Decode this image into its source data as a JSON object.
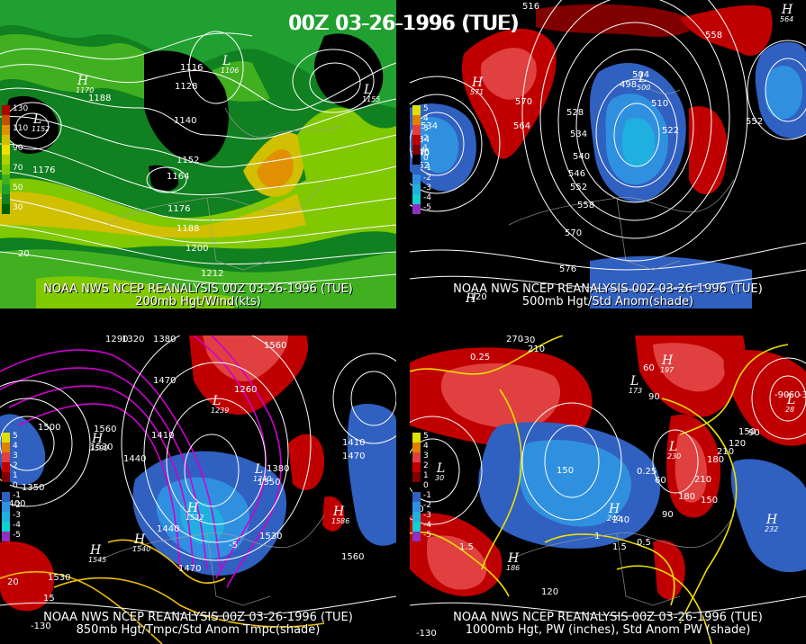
{
  "main_title": "00Z 03-26-1996 (TUE)",
  "panels": [
    {
      "id": "p200",
      "line1": "NOAA NWS NCEP REANALYSIS 00Z 03-26-1996 (TUE)",
      "line2": "200mb Hgt/Wind(kts)",
      "legend": [
        {
          "label": "130",
          "color": "#b00000"
        },
        {
          "label": "",
          "color": "#c05000"
        },
        {
          "label": "110",
          "color": "#e09000"
        },
        {
          "label": "",
          "color": "#d0c000"
        },
        {
          "label": "90",
          "color": "#f0e000"
        },
        {
          "label": "",
          "color": "#b0d000"
        },
        {
          "label": "70",
          "color": "#80c800"
        },
        {
          "label": "",
          "color": "#40b020"
        },
        {
          "label": "50",
          "color": "#20a030"
        },
        {
          "label": "",
          "color": "#108020"
        },
        {
          "label": "30",
          "color": "#006000"
        }
      ],
      "labels": [
        "1116",
        "1128",
        "1140",
        "1152",
        "1164",
        "1176",
        "1188",
        "1200",
        "1212",
        "1176",
        "1188",
        "20"
      ],
      "centers": [
        {
          "t": "L",
          "v": "1106"
        },
        {
          "t": "H",
          "v": "1170"
        },
        {
          "t": "L",
          "v": "1152"
        },
        {
          "t": "L",
          "v": "1155"
        }
      ]
    },
    {
      "id": "p500",
      "line1": "NOAA NWS NCEP REANALYSIS 00Z 03-26-1996 (TUE)",
      "line2": "500mb Hgt/Std Anom(shade)",
      "legend": [
        {
          "label": "5",
          "color": "#e0e000"
        },
        {
          "label": "4",
          "color": "#e08000"
        },
        {
          "label": "3",
          "color": "#e04040"
        },
        {
          "label": "2",
          "color": "#c00000"
        },
        {
          "label": "1",
          "color": "#800000"
        },
        {
          "label": "0",
          "color": "#000000"
        },
        {
          "label": "-1",
          "color": "#3060c0"
        },
        {
          "label": "-2",
          "color": "#3090e0"
        },
        {
          "label": "-3",
          "color": "#20b0e0"
        },
        {
          "label": "-4",
          "color": "#10d0d0"
        },
        {
          "label": "-5",
          "color": "#9030c0"
        }
      ],
      "labels": [
        "516",
        "558",
        "564",
        "570",
        "528",
        "534",
        "540",
        "546",
        "552",
        "558",
        "570",
        "576",
        "534",
        "540",
        "552",
        "546",
        "552",
        "534",
        "522",
        "510",
        "504",
        "498",
        "-120"
      ],
      "centers": [
        {
          "t": "H",
          "v": "571"
        },
        {
          "t": "L",
          "v": "534"
        },
        {
          "t": "L",
          "v": "500"
        },
        {
          "t": "H",
          "v": "564"
        },
        {
          "t": "H",
          "v": ""
        }
      ]
    },
    {
      "id": "p850",
      "line1": "NOAA NWS NCEP REANALYSIS 00Z 03-26-1996 (TUE)",
      "line2": "850mb Hgt/Tmpc/Std Anom Tmpc(shade)",
      "legend": [
        {
          "label": "5",
          "color": "#e0e000"
        },
        {
          "label": "4",
          "color": "#e08000"
        },
        {
          "label": "3",
          "color": "#e04040"
        },
        {
          "label": "2",
          "color": "#c00000"
        },
        {
          "label": "1",
          "color": "#800000"
        },
        {
          "label": "0",
          "color": "#000000"
        },
        {
          "label": "-1",
          "color": "#3060c0"
        },
        {
          "label": "-2",
          "color": "#3090e0"
        },
        {
          "label": "-3",
          "color": "#20b0e0"
        },
        {
          "label": "-4",
          "color": "#10d0d0"
        },
        {
          "label": "-5",
          "color": "#9030c0"
        }
      ],
      "labels": [
        "1290",
        "1320",
        "1380",
        "1470",
        "1560",
        "1260",
        "1500",
        "1560",
        "1530",
        "1410",
        "1440",
        "1350",
        "1400",
        "1380",
        "1350",
        "1410",
        "1470",
        "1530",
        "1560",
        "1440",
        "1470",
        "1530",
        "15",
        "20",
        "-130",
        "-5"
      ],
      "centers": [
        {
          "t": "L",
          "v": "1239"
        },
        {
          "t": "H",
          "v": "1590"
        },
        {
          "t": "L",
          "v": "1240"
        },
        {
          "t": "H",
          "v": "1532"
        },
        {
          "t": "H",
          "v": "1545"
        },
        {
          "t": "H",
          "v": "1586"
        },
        {
          "t": "H",
          "v": "1540"
        }
      ]
    },
    {
      "id": "p1000",
      "line1": "NOAA NWS NCEP REANALYSIS 00Z 03-26-1996 (TUE)",
      "line2": "1000mb Hgt, PW (inches), Std Anom PW (shade)",
      "legend": [
        {
          "label": "5",
          "color": "#e0e000"
        },
        {
          "label": "4",
          "color": "#e08000"
        },
        {
          "label": "3",
          "color": "#e04040"
        },
        {
          "label": "2",
          "color": "#c00000"
        },
        {
          "label": "1",
          "color": "#800000"
        },
        {
          "label": "0",
          "color": "#000000"
        },
        {
          "label": "-1",
          "color": "#3060c0"
        },
        {
          "label": "-2",
          "color": "#3090e0"
        },
        {
          "label": "-3",
          "color": "#20b0e0"
        },
        {
          "label": "-4",
          "color": "#10d0d0"
        },
        {
          "label": "-5",
          "color": "#9030c0"
        }
      ],
      "labels": [
        "0.25",
        "-30",
        "210",
        "270",
        "90",
        "150",
        "180",
        "210",
        "120",
        "150",
        "90",
        "60",
        "210",
        "240",
        "180",
        "150",
        "90",
        "120",
        "0.25",
        "0.5",
        "1",
        "1.5",
        "1.5",
        "90",
        "60",
        "-90",
        "-60",
        "-30",
        "-130"
      ],
      "centers": [
        {
          "t": "L",
          "v": "173"
        },
        {
          "t": "L",
          "v": "30"
        },
        {
          "t": "H",
          "v": "197"
        },
        {
          "t": "L",
          "v": "230"
        },
        {
          "t": "H",
          "v": "240"
        },
        {
          "t": "H",
          "v": "232"
        },
        {
          "t": "H",
          "v": "186"
        },
        {
          "t": "L",
          "v": "28"
        }
      ]
    }
  ]
}
